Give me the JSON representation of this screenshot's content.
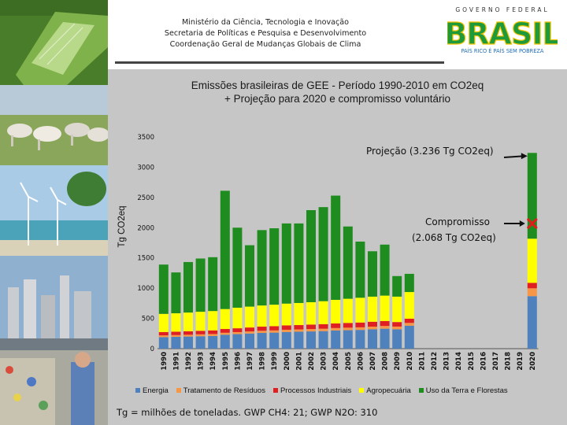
{
  "header": {
    "ministry_line1": "Ministério da Ciência, Tecnologia e Inovação",
    "ministry_line2": "Secretaria de Políticas e Pesquisa e Desenvolvimento",
    "ministry_line3": "Coordenação Geral de Mudanças Globais de Clima",
    "logo_top": "GOVERNO FEDERAL",
    "logo_main": "BRASIL",
    "logo_tagline": "PAÍS RICO É PAÍS SEM POBREZA"
  },
  "colors": {
    "panel_bg": "#c6c6c6",
    "energia": "#4f81bd",
    "residuos": "#f79646",
    "industriais": "#e02020",
    "agropecuaria": "#ffff00",
    "uso_terra": "#1e8c1e",
    "brasil_green": "#1f9a3a",
    "brasil_yellow": "#f4c400",
    "marker_red": "#e31b1b"
  },
  "chart_data": {
    "type": "bar",
    "stacked": true,
    "title_line1": "Emissões brasileiras de GEE - Período 1990-2010 em CO2eq",
    "title_line2": "+ Projeção para 2020 e compromisso voluntário",
    "ylabel": "Tg CO2eq",
    "ylim": [
      0,
      3500
    ],
    "yticks": [
      "0",
      "500",
      "1000",
      "1500",
      "2000",
      "2500",
      "3000",
      "3500"
    ],
    "categories": [
      "1990",
      "1991",
      "1992",
      "1993",
      "1994",
      "1995",
      "1996",
      "1997",
      "1998",
      "1999",
      "2000",
      "2001",
      "2002",
      "2003",
      "2004",
      "2005",
      "2006",
      "2007",
      "2008",
      "2009",
      "2010",
      "2011",
      "2012",
      "2013",
      "2014",
      "2015",
      "2016",
      "2017",
      "2018",
      "2019",
      "2020"
    ],
    "series": [
      {
        "name": "Energia",
        "color": "#4f81bd",
        "values": [
          190,
          195,
          200,
          205,
          210,
          230,
          240,
          250,
          260,
          265,
          275,
          280,
          285,
          290,
          300,
          305,
          310,
          320,
          330,
          320,
          380,
          null,
          null,
          null,
          null,
          null,
          null,
          null,
          null,
          null,
          868
        ]
      },
      {
        "name": "Tratamento de Resíduos",
        "color": "#f79646",
        "values": [
          30,
          30,
          30,
          32,
          32,
          33,
          34,
          35,
          36,
          37,
          38,
          38,
          39,
          40,
          41,
          42,
          43,
          44,
          45,
          45,
          46,
          null,
          null,
          null,
          null,
          null,
          null,
          null,
          null,
          null,
          130
        ]
      },
      {
        "name": "Processos Industriais",
        "color": "#e02020",
        "values": [
          55,
          55,
          57,
          58,
          60,
          62,
          63,
          65,
          68,
          70,
          72,
          72,
          74,
          75,
          76,
          78,
          79,
          81,
          82,
          75,
          70,
          null,
          null,
          null,
          null,
          null,
          null,
          null,
          null,
          null,
          90
        ]
      },
      {
        "name": "Agropecuária",
        "color": "#ffff00",
        "values": [
          300,
          305,
          310,
          315,
          320,
          330,
          340,
          345,
          350,
          355,
          360,
          365,
          370,
          380,
          390,
          400,
          410,
          415,
          420,
          420,
          440,
          null,
          null,
          null,
          null,
          null,
          null,
          null,
          null,
          null,
          730
        ]
      },
      {
        "name": "Uso da Terra e Florestas",
        "color": "#1e8c1e",
        "values": [
          815,
          675,
          835,
          880,
          890,
          1955,
          1323,
          1015,
          1246,
          1263,
          1325,
          1315,
          1522,
          1555,
          1723,
          1195,
          928,
          750,
          843,
          340,
          301,
          null,
          null,
          null,
          null,
          null,
          null,
          null,
          null,
          null,
          1418
        ]
      }
    ],
    "annotations": {
      "projection_label": "Projeção (3.236 Tg CO2eq)",
      "projection_value": 3236,
      "commitment_label_line1": "Compromisso",
      "commitment_label_line2": "(2.068 Tg CO2eq)",
      "commitment_value": 2068
    },
    "footnote": "Tg = milhões de toneladas. GWP CH4: 21; GWP N2O: 310",
    "grid": false,
    "legend_position": "bottom"
  }
}
